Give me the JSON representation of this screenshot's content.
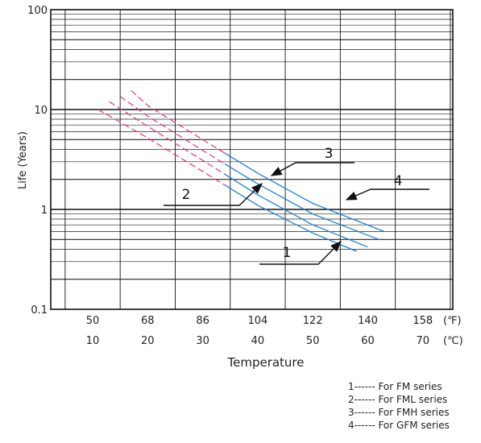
{
  "chart_data": {
    "type": "line",
    "ylabel": "Life (Years)",
    "xlabel": "Temperature",
    "y_scale": "log",
    "ylim": [
      0.1,
      100
    ],
    "y_ticks": [
      "100",
      "10",
      "1",
      "0.1"
    ],
    "x_ticks_F": [
      "50",
      "68",
      "86",
      "104",
      "122",
      "140",
      "158"
    ],
    "x_ticks_C": [
      "10",
      "20",
      "30",
      "40",
      "50",
      "60",
      "70"
    ],
    "x_unit_F": "(℉)",
    "x_unit_C": "(℃)",
    "xlim_C": [
      10,
      70
    ],
    "grid": true,
    "series": [
      {
        "label": "1",
        "color": "#1f7fd0",
        "dashed_color": "#e0357a",
        "solid_from_C": 34,
        "points_C": [
          [
            11,
            10.0
          ],
          [
            20,
            5.2
          ],
          [
            30,
            2.4
          ],
          [
            40,
            1.1
          ],
          [
            50,
            0.58
          ],
          [
            58,
            0.38
          ]
        ]
      },
      {
        "label": "2",
        "color": "#1f7fd0",
        "dashed_color": "#e0357a",
        "solid_from_C": 34,
        "points_C": [
          [
            13,
            12.0
          ],
          [
            20,
            6.8
          ],
          [
            30,
            3.1
          ],
          [
            40,
            1.4
          ],
          [
            50,
            0.7
          ],
          [
            60,
            0.42
          ]
        ]
      },
      {
        "label": "3",
        "color": "#1f7fd0",
        "dashed_color": "#e0357a",
        "solid_from_C": 34,
        "points_C": [
          [
            15,
            13.5
          ],
          [
            20,
            8.6
          ],
          [
            30,
            3.9
          ],
          [
            40,
            1.8
          ],
          [
            50,
            0.9
          ],
          [
            62,
            0.5
          ]
        ]
      },
      {
        "label": "4",
        "color": "#1f7fd0",
        "dashed_color": "#e0357a",
        "solid_from_C": 34,
        "points_C": [
          [
            17,
            15.5
          ],
          [
            20,
            11.0
          ],
          [
            30,
            5.0
          ],
          [
            40,
            2.3
          ],
          [
            50,
            1.15
          ],
          [
            63,
            0.6
          ]
        ]
      }
    ],
    "callouts": [
      "1",
      "2",
      "3",
      "4"
    ],
    "legend_notes": [
      {
        "num": "1",
        "dashes": "------",
        "text": "For FM  series"
      },
      {
        "num": "2",
        "dashes": "------",
        "text": "For FML series"
      },
      {
        "num": "3",
        "dashes": "------",
        "text": "For FMH series"
      },
      {
        "num": "4",
        "dashes": "------",
        "text": "For GFM series"
      }
    ]
  }
}
